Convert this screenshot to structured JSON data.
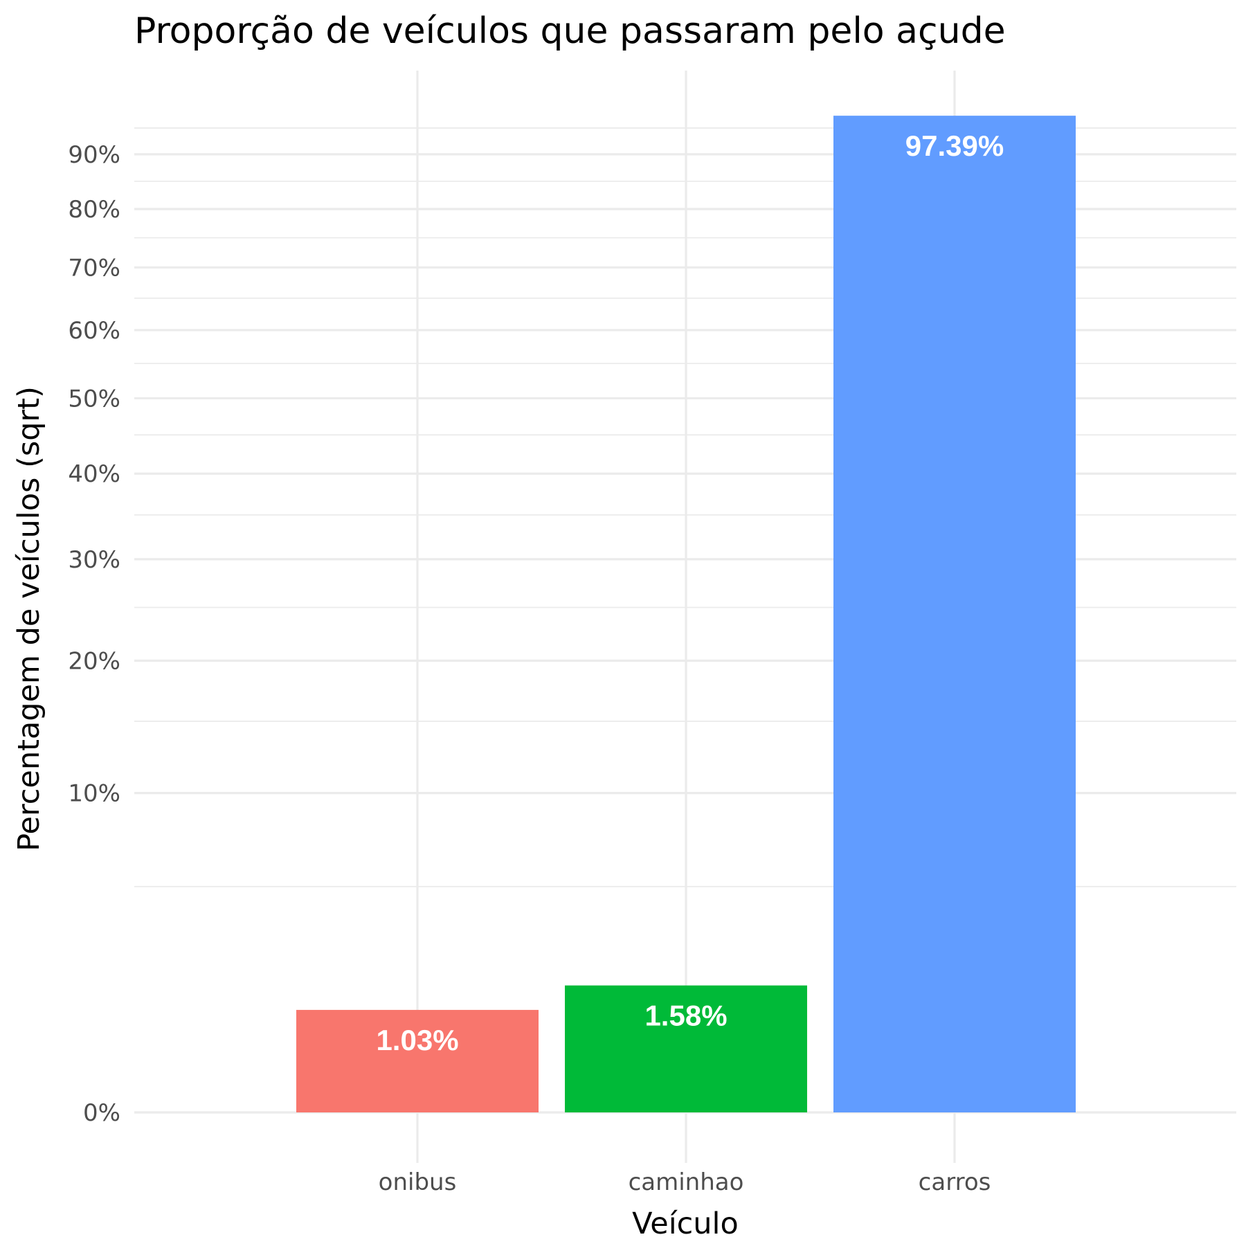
{
  "chart_data": {
    "type": "bar",
    "title": "Proporção de veículos que passaram pelo açude",
    "xlabel": "Veículo",
    "ylabel": "Percentagem de veículos (sqrt)",
    "y_scale": "sqrt",
    "ylim": [
      0,
      100
    ],
    "y_ticks": [
      0,
      10,
      20,
      30,
      40,
      50,
      60,
      70,
      80,
      90
    ],
    "y_tick_labels": [
      "0%",
      "10%",
      "20%",
      "30%",
      "40%",
      "50%",
      "60%",
      "70%",
      "80%",
      "90%"
    ],
    "categories": [
      "onibus",
      "caminhao",
      "carros"
    ],
    "values": [
      1.03,
      1.58,
      97.39
    ],
    "data_labels": [
      "1.03%",
      "1.58%",
      "97.39%"
    ],
    "colors": [
      "#F8766D",
      "#00BA38",
      "#619CFF"
    ],
    "grid": true,
    "legend": "none"
  }
}
